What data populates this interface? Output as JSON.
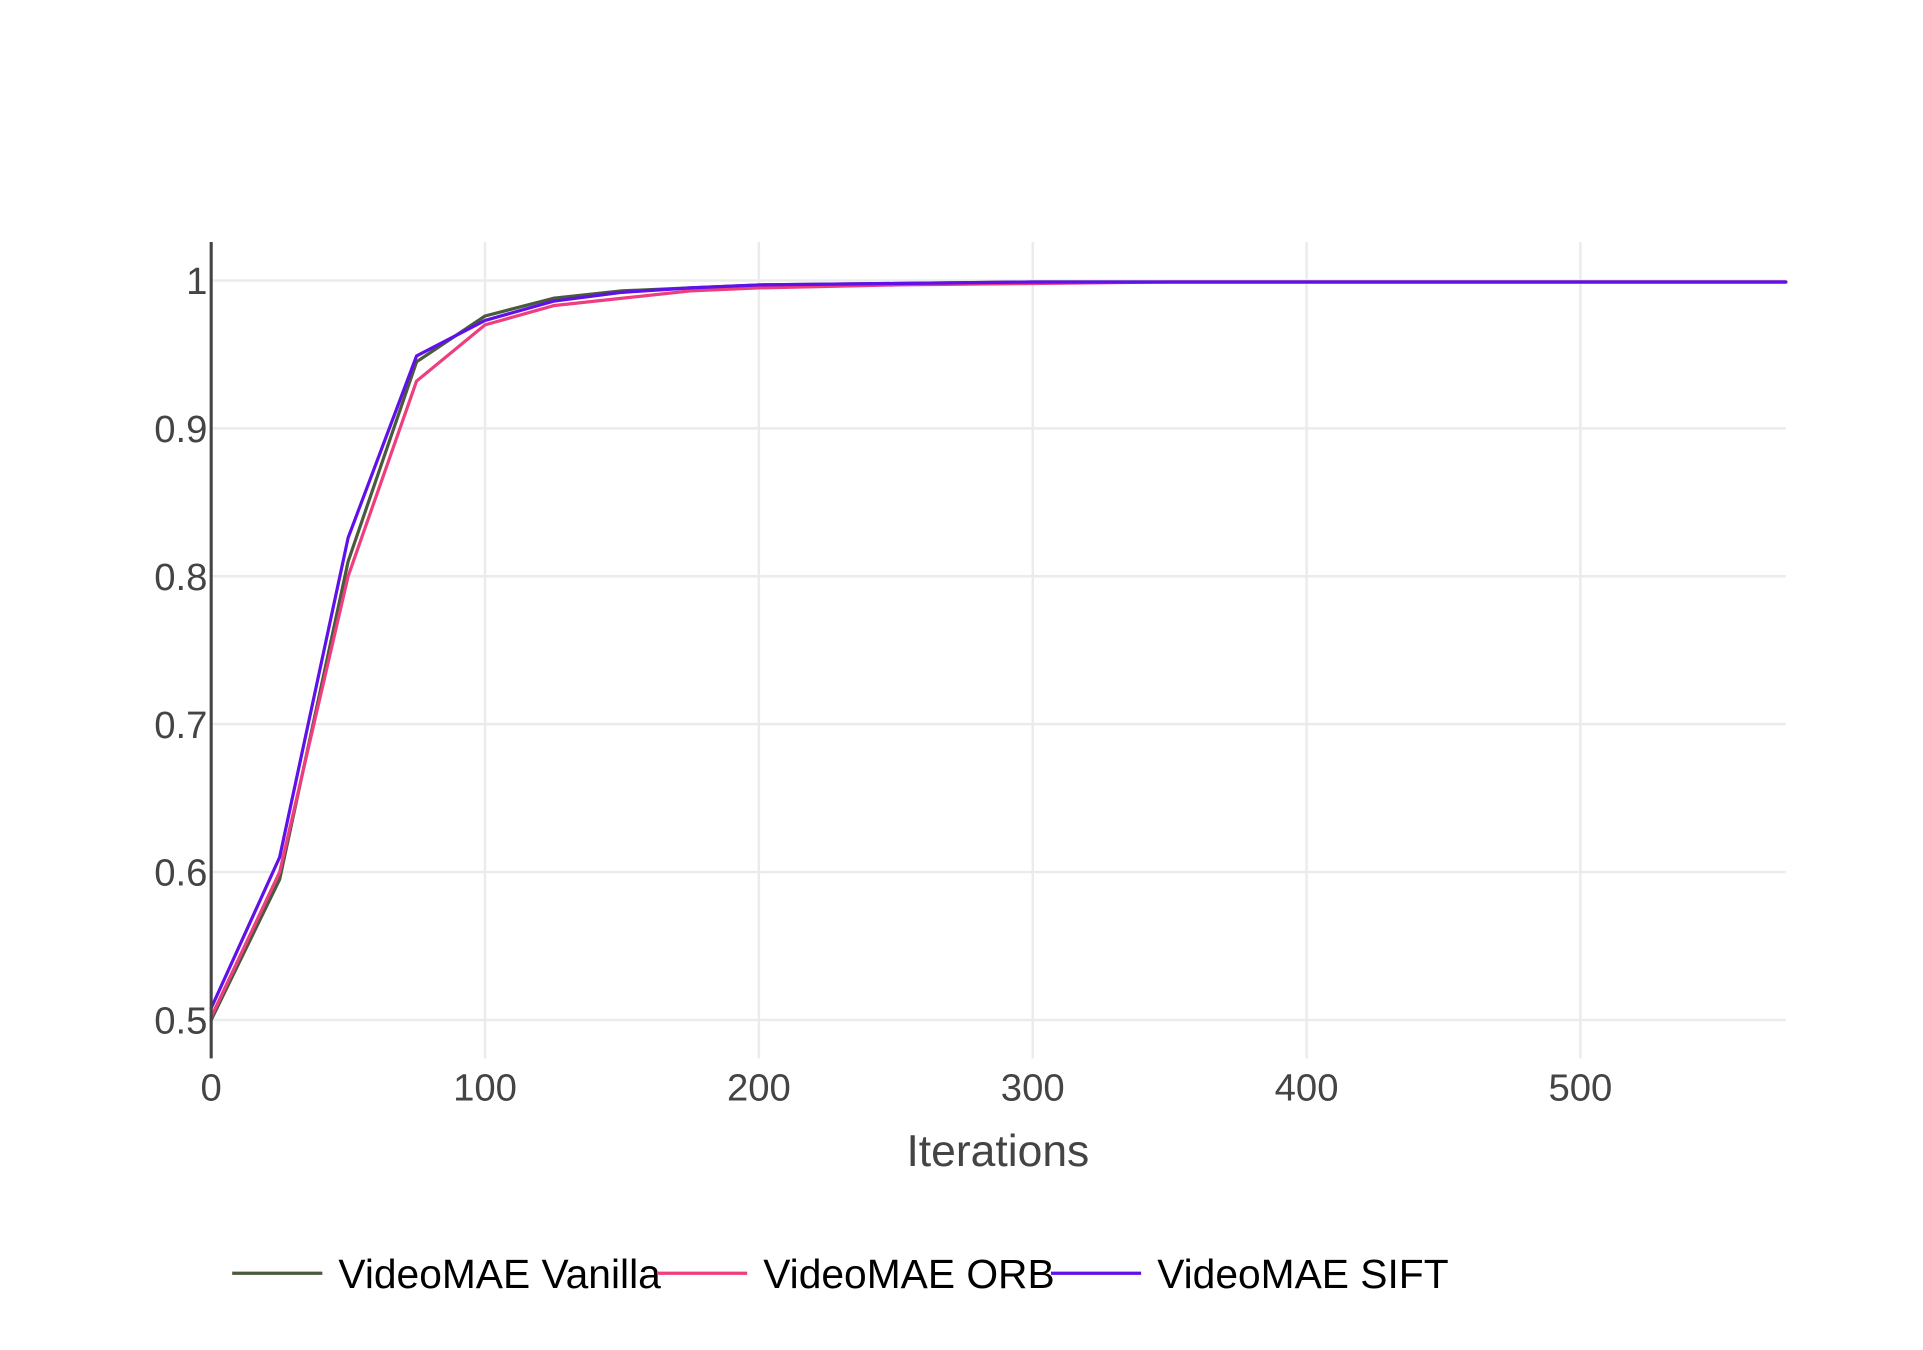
{
  "chart_data": {
    "type": "line",
    "title": "",
    "xlabel": "Iterations",
    "ylabel": "",
    "xlim": [
      0,
      575
    ],
    "ylim": [
      0.474,
      1.026
    ],
    "x_ticks": [
      0,
      100,
      200,
      300,
      400,
      500
    ],
    "x_tick_labels": [
      "0",
      "100",
      "200",
      "300",
      "400",
      "500"
    ],
    "y_ticks": [
      0.5,
      0.6,
      0.7,
      0.8,
      0.9,
      1.0
    ],
    "y_tick_labels": [
      "0.5",
      "0.6",
      "0.7",
      "0.8",
      "0.9",
      "1"
    ],
    "grid": true,
    "legend_position": "bottom",
    "x": [
      0,
      25,
      50,
      75,
      100,
      125,
      150,
      175,
      200,
      250,
      300,
      350,
      400,
      450,
      500,
      575
    ],
    "series": [
      {
        "name": "VideoMAE Vanilla",
        "color": "#4a5a3c",
        "values": [
          0.5,
          0.595,
          0.81,
          0.945,
          0.976,
          0.988,
          0.993,
          0.995,
          0.997,
          0.998,
          0.999,
          0.999,
          0.999,
          0.999,
          0.999,
          0.999
        ]
      },
      {
        "name": "VideoMAE ORB",
        "color": "#ef3e7f",
        "values": [
          0.502,
          0.6,
          0.8,
          0.932,
          0.97,
          0.983,
          0.988,
          0.993,
          0.995,
          0.997,
          0.998,
          0.999,
          0.999,
          0.999,
          0.999,
          0.999
        ]
      },
      {
        "name": "VideoMAE SIFT",
        "color": "#6010e8",
        "values": [
          0.508,
          0.61,
          0.826,
          0.949,
          0.973,
          0.986,
          0.992,
          0.995,
          0.997,
          0.998,
          0.999,
          0.999,
          0.999,
          0.999,
          0.999,
          0.999
        ]
      }
    ]
  }
}
